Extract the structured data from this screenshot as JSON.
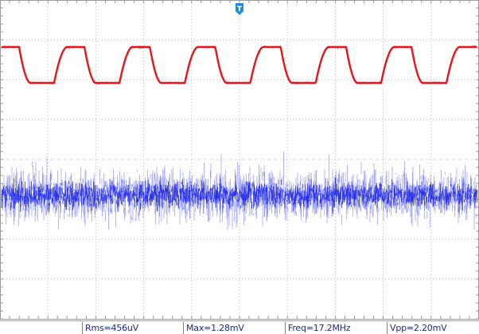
{
  "trigger": {
    "label": "T",
    "color": "#1e8fd6"
  },
  "channels": [
    {
      "name": "ch1-red",
      "color": "#e8141c"
    },
    {
      "name": "ch2-blue",
      "color": "#1a22e6"
    }
  ],
  "measurements": [
    {
      "label": "Rms=456uV"
    },
    {
      "label": "Max=1.28mV"
    },
    {
      "label": "Freq=17.2MHz"
    },
    {
      "label": "Vpp=2.20mV"
    }
  ]
}
